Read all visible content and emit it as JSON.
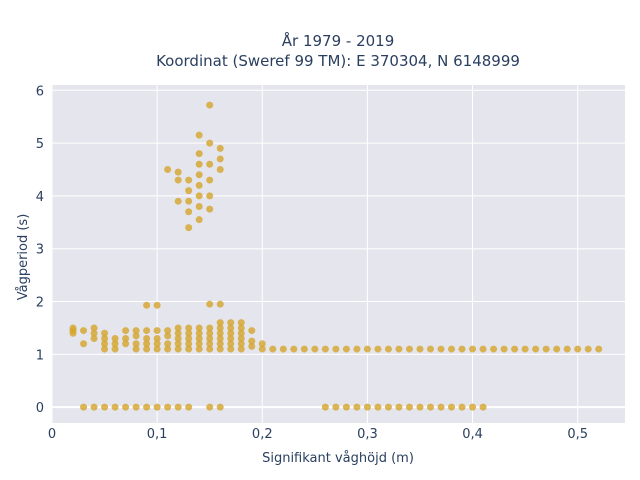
{
  "chart_data": {
    "type": "scatter",
    "title_lines": [
      "År 1979 - 2019",
      "Koordinat (Sweref 99 TM): E 370304, N 6148999"
    ],
    "xlabel": "Signifikant våghöjd (m)",
    "ylabel": "Vågperiod (s)",
    "xlim": [
      0,
      0.545
    ],
    "ylim": [
      -0.3,
      6.1
    ],
    "xticks": [
      0,
      0.1,
      0.2,
      0.3,
      0.4,
      0.5
    ],
    "xtick_labels": [
      "0",
      "0,1",
      "0,2",
      "0,3",
      "0,4",
      "0,5"
    ],
    "yticks": [
      0,
      1,
      2,
      3,
      4,
      5,
      6
    ],
    "ytick_labels": [
      "0",
      "1",
      "2",
      "3",
      "4",
      "5",
      "6"
    ],
    "grid": true,
    "colors": {
      "marker": "#d4a52a",
      "plot_bg": "#e5e5ee",
      "grid": "#ffffff",
      "text": "#2a3f5f"
    },
    "series": [
      {
        "points": [
          [
            0.02,
            1.4
          ],
          [
            0.02,
            1.45
          ],
          [
            0.02,
            1.5
          ],
          [
            0.03,
            1.2
          ],
          [
            0.03,
            1.45
          ],
          [
            0.04,
            1.3
          ],
          [
            0.04,
            1.4
          ],
          [
            0.04,
            1.5
          ],
          [
            0.05,
            1.1
          ],
          [
            0.05,
            1.2
          ],
          [
            0.05,
            1.3
          ],
          [
            0.05,
            1.4
          ],
          [
            0.06,
            1.1
          ],
          [
            0.06,
            1.2
          ],
          [
            0.06,
            1.3
          ],
          [
            0.07,
            1.2
          ],
          [
            0.07,
            1.3
          ],
          [
            0.07,
            1.45
          ],
          [
            0.08,
            1.1
          ],
          [
            0.08,
            1.2
          ],
          [
            0.08,
            1.35
          ],
          [
            0.08,
            1.45
          ],
          [
            0.09,
            1.1
          ],
          [
            0.09,
            1.2
          ],
          [
            0.09,
            1.3
          ],
          [
            0.09,
            1.45
          ],
          [
            0.1,
            1.1
          ],
          [
            0.1,
            1.2
          ],
          [
            0.1,
            1.3
          ],
          [
            0.1,
            1.45
          ],
          [
            0.11,
            1.1
          ],
          [
            0.11,
            1.2
          ],
          [
            0.11,
            1.35
          ],
          [
            0.11,
            1.45
          ],
          [
            0.12,
            1.1
          ],
          [
            0.12,
            1.2
          ],
          [
            0.12,
            1.3
          ],
          [
            0.12,
            1.4
          ],
          [
            0.12,
            1.5
          ],
          [
            0.13,
            1.1
          ],
          [
            0.13,
            1.2
          ],
          [
            0.13,
            1.3
          ],
          [
            0.13,
            1.4
          ],
          [
            0.13,
            1.5
          ],
          [
            0.14,
            1.1
          ],
          [
            0.14,
            1.2
          ],
          [
            0.14,
            1.3
          ],
          [
            0.14,
            1.4
          ],
          [
            0.14,
            1.5
          ],
          [
            0.15,
            1.1
          ],
          [
            0.15,
            1.2
          ],
          [
            0.15,
            1.3
          ],
          [
            0.15,
            1.4
          ],
          [
            0.15,
            1.5
          ],
          [
            0.16,
            1.1
          ],
          [
            0.16,
            1.2
          ],
          [
            0.16,
            1.3
          ],
          [
            0.16,
            1.4
          ],
          [
            0.16,
            1.5
          ],
          [
            0.16,
            1.6
          ],
          [
            0.17,
            1.1
          ],
          [
            0.17,
            1.2
          ],
          [
            0.17,
            1.3
          ],
          [
            0.17,
            1.4
          ],
          [
            0.17,
            1.5
          ],
          [
            0.17,
            1.6
          ],
          [
            0.18,
            1.1
          ],
          [
            0.18,
            1.2
          ],
          [
            0.18,
            1.3
          ],
          [
            0.18,
            1.4
          ],
          [
            0.18,
            1.5
          ],
          [
            0.18,
            1.6
          ],
          [
            0.19,
            1.15
          ],
          [
            0.19,
            1.25
          ],
          [
            0.19,
            1.45
          ],
          [
            0.2,
            1.1
          ],
          [
            0.2,
            1.2
          ],
          [
            0.21,
            1.1
          ],
          [
            0.22,
            1.1
          ],
          [
            0.23,
            1.1
          ],
          [
            0.24,
            1.1
          ],
          [
            0.25,
            1.1
          ],
          [
            0.26,
            1.1
          ],
          [
            0.27,
            1.1
          ],
          [
            0.28,
            1.1
          ],
          [
            0.29,
            1.1
          ],
          [
            0.3,
            1.1
          ],
          [
            0.31,
            1.1
          ],
          [
            0.32,
            1.1
          ],
          [
            0.33,
            1.1
          ],
          [
            0.34,
            1.1
          ],
          [
            0.35,
            1.1
          ],
          [
            0.36,
            1.1
          ],
          [
            0.37,
            1.1
          ],
          [
            0.38,
            1.1
          ],
          [
            0.39,
            1.1
          ],
          [
            0.4,
            1.1
          ],
          [
            0.41,
            1.1
          ],
          [
            0.42,
            1.1
          ],
          [
            0.43,
            1.1
          ],
          [
            0.44,
            1.1
          ],
          [
            0.45,
            1.1
          ],
          [
            0.46,
            1.1
          ],
          [
            0.47,
            1.1
          ],
          [
            0.48,
            1.1
          ],
          [
            0.49,
            1.1
          ],
          [
            0.5,
            1.1
          ],
          [
            0.51,
            1.1
          ],
          [
            0.52,
            1.1
          ],
          [
            0.09,
            1.93
          ],
          [
            0.1,
            1.93
          ],
          [
            0.15,
            1.95
          ],
          [
            0.16,
            1.95
          ],
          [
            0.11,
            4.5
          ],
          [
            0.12,
            3.9
          ],
          [
            0.12,
            4.3
          ],
          [
            0.12,
            4.45
          ],
          [
            0.13,
            3.4
          ],
          [
            0.13,
            3.7
          ],
          [
            0.13,
            3.9
          ],
          [
            0.13,
            4.1
          ],
          [
            0.13,
            4.3
          ],
          [
            0.14,
            3.55
          ],
          [
            0.14,
            3.8
          ],
          [
            0.14,
            4.0
          ],
          [
            0.14,
            4.2
          ],
          [
            0.14,
            4.4
          ],
          [
            0.14,
            4.6
          ],
          [
            0.14,
            4.8
          ],
          [
            0.14,
            5.15
          ],
          [
            0.15,
            3.75
          ],
          [
            0.15,
            4.0
          ],
          [
            0.15,
            4.3
          ],
          [
            0.15,
            4.6
          ],
          [
            0.15,
            5.0
          ],
          [
            0.15,
            5.72
          ],
          [
            0.16,
            4.5
          ],
          [
            0.16,
            4.7
          ],
          [
            0.16,
            4.9
          ],
          [
            0.03,
            0
          ],
          [
            0.04,
            0
          ],
          [
            0.05,
            0
          ],
          [
            0.06,
            0
          ],
          [
            0.07,
            0
          ],
          [
            0.08,
            0
          ],
          [
            0.09,
            0
          ],
          [
            0.1,
            0
          ],
          [
            0.11,
            0
          ],
          [
            0.12,
            0
          ],
          [
            0.13,
            0
          ],
          [
            0.15,
            0
          ],
          [
            0.16,
            0
          ],
          [
            0.26,
            0
          ],
          [
            0.27,
            0
          ],
          [
            0.28,
            0
          ],
          [
            0.29,
            0
          ],
          [
            0.3,
            0
          ],
          [
            0.31,
            0
          ],
          [
            0.32,
            0
          ],
          [
            0.33,
            0
          ],
          [
            0.34,
            0
          ],
          [
            0.35,
            0
          ],
          [
            0.36,
            0
          ],
          [
            0.37,
            0
          ],
          [
            0.38,
            0
          ],
          [
            0.39,
            0
          ],
          [
            0.4,
            0
          ],
          [
            0.41,
            0
          ]
        ]
      }
    ]
  }
}
